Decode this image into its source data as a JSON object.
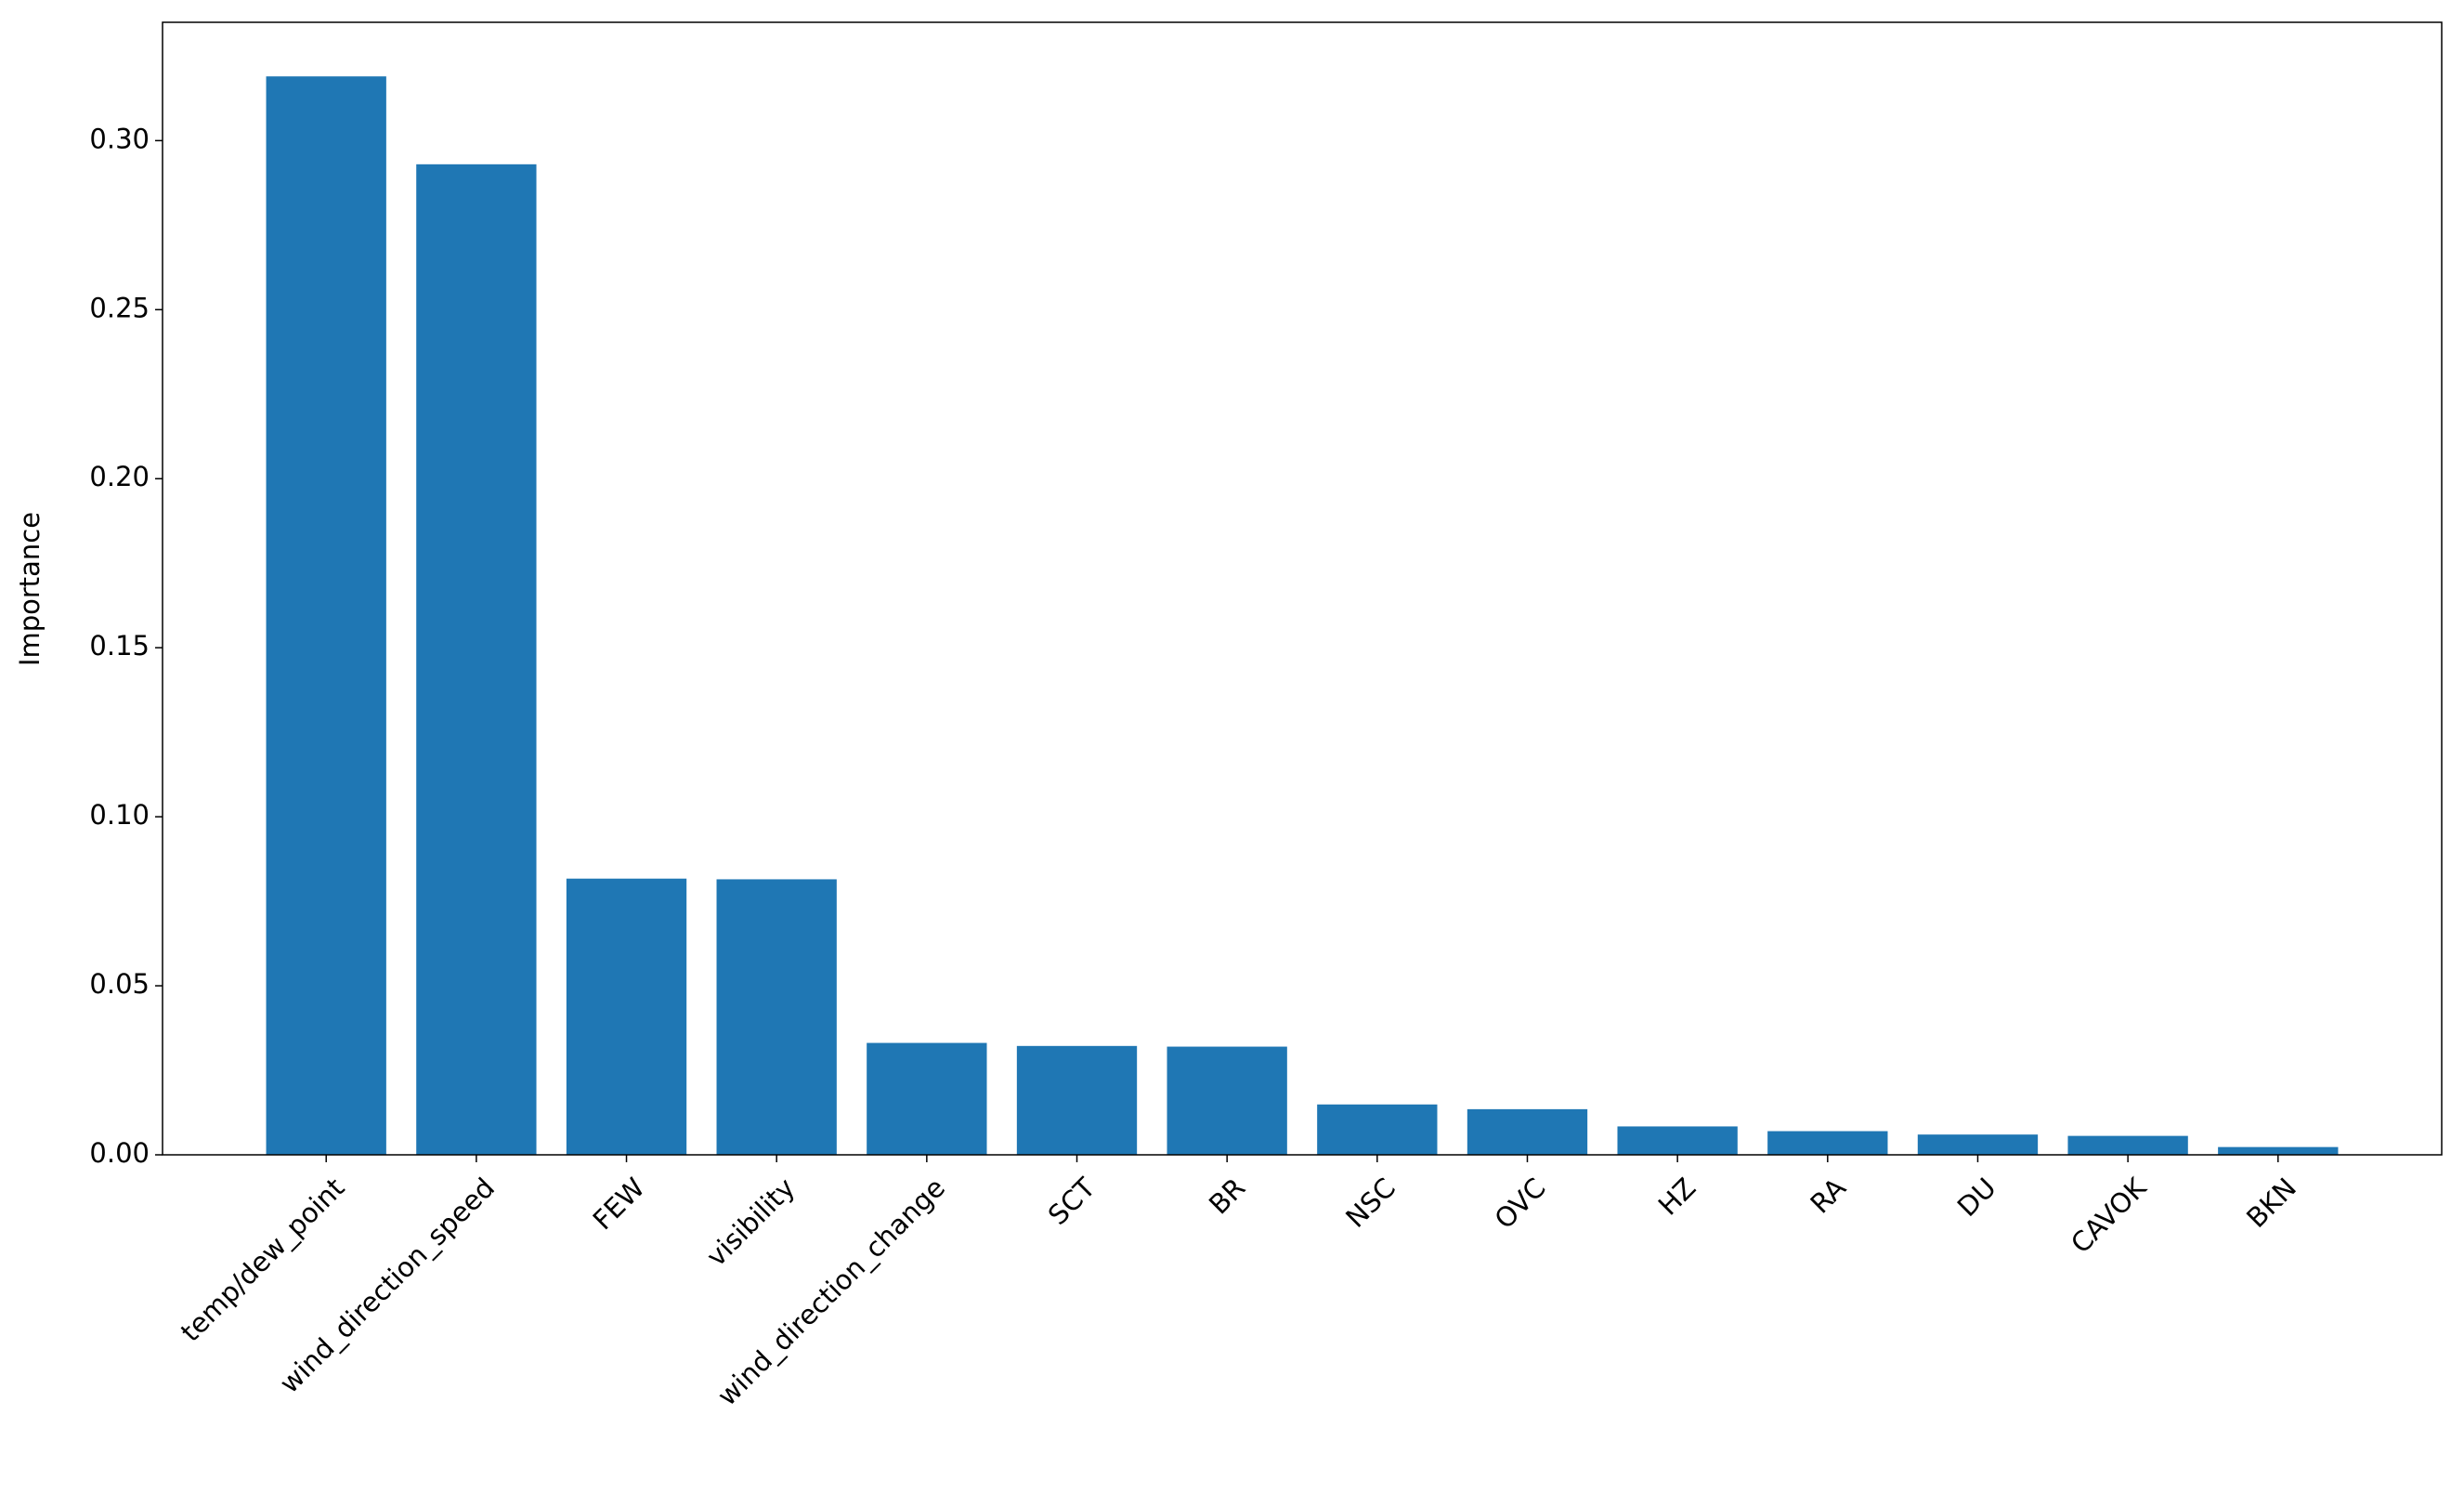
{
  "chart_data": {
    "type": "bar",
    "y_label": "Importance",
    "categories": [
      "temp/dew_point",
      "wind_direction_speed",
      "FEW",
      "visibility",
      "wind_direction_change",
      "SCT",
      "BR",
      "NSC",
      "OVC",
      "HZ",
      "RA",
      "DU",
      "CAVOK",
      "BKN"
    ],
    "values": [
      0.319,
      0.293,
      0.0817,
      0.0815,
      0.0331,
      0.0322,
      0.032,
      0.0149,
      0.0135,
      0.0084,
      0.007,
      0.006,
      0.0056,
      0.0023
    ],
    "color": "#1f77b4",
    "ylim": [
      0,
      0.335
    ],
    "yticks": [
      {
        "value": 0,
        "label": "0.00"
      },
      {
        "value": 0.05,
        "label": "0.05"
      },
      {
        "value": 0.1,
        "label": "0.10"
      },
      {
        "value": 0.15,
        "label": "0.15"
      },
      {
        "value": 0.2,
        "label": "0.20"
      },
      {
        "value": 0.25,
        "label": "0.25"
      },
      {
        "value": 0.3,
        "label": "0.30"
      }
    ],
    "grid": false
  }
}
